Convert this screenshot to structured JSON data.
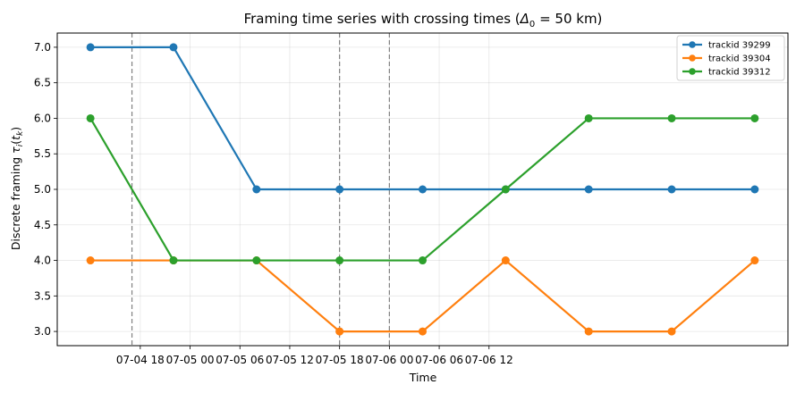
{
  "chart_data": {
    "type": "line",
    "title_main": "Framing time series with crossing times (",
    "title_math": "Δ",
    "title_sub": "0",
    "title_rest": " = 50 km)",
    "xlabel": "Time",
    "ylabel_main": "Discrete framing ",
    "ylabel_tau": "τ",
    "ylabel_i": "i",
    "ylabel_paren_open": "(",
    "ylabel_t": "t",
    "ylabel_k": "k",
    "ylabel_paren_close": ")",
    "x": [
      "2024-07-04 12:00",
      "2024-07-04 22:00",
      "2024-07-05 08:00",
      "2024-07-05 18:00",
      "2024-07-06 04:00",
      "2024-07-06 14:00",
      "2024-07-07 00:00",
      "2024-07-07 10:00",
      "2024-07-07 20:00"
    ],
    "x_tick_values": [
      "2024-07-04 18:00",
      "2024-07-05 00:00",
      "2024-07-05 06:00",
      "2024-07-05 12:00",
      "2024-07-05 18:00",
      "2024-07-06 00:00",
      "2024-07-06 06:00",
      "2024-07-06 12:00"
    ],
    "x_tick_labels": [
      "07-04 18",
      "07-05 00",
      "07-05 06",
      "07-05 12",
      "07-05 18",
      "07-06 00",
      "07-06 06",
      "07-06 12"
    ],
    "y_ticks": [
      "3.0",
      "3.5",
      "4.0",
      "4.5",
      "5.0",
      "5.5",
      "6.0",
      "6.5",
      "7.0"
    ],
    "ylim": [
      2.8,
      7.2
    ],
    "grid": true,
    "legend_position": "top-right",
    "crossing_times": [
      "2024-07-04 17:00",
      "2024-07-05 18:00",
      "2024-07-06 00:00"
    ],
    "series": [
      {
        "name": "trackid 39299",
        "color": "#1f77b4",
        "values": [
          7,
          7,
          5,
          5,
          5,
          5,
          5,
          5,
          5
        ]
      },
      {
        "name": "trackid 39304",
        "color": "#ff7f0e",
        "values": [
          4,
          4,
          4,
          3,
          3,
          4,
          3,
          3,
          4
        ]
      },
      {
        "name": "trackid 39312",
        "color": "#2ca02c",
        "values": [
          6,
          4,
          4,
          4,
          4,
          5,
          6,
          6,
          6
        ]
      }
    ]
  }
}
